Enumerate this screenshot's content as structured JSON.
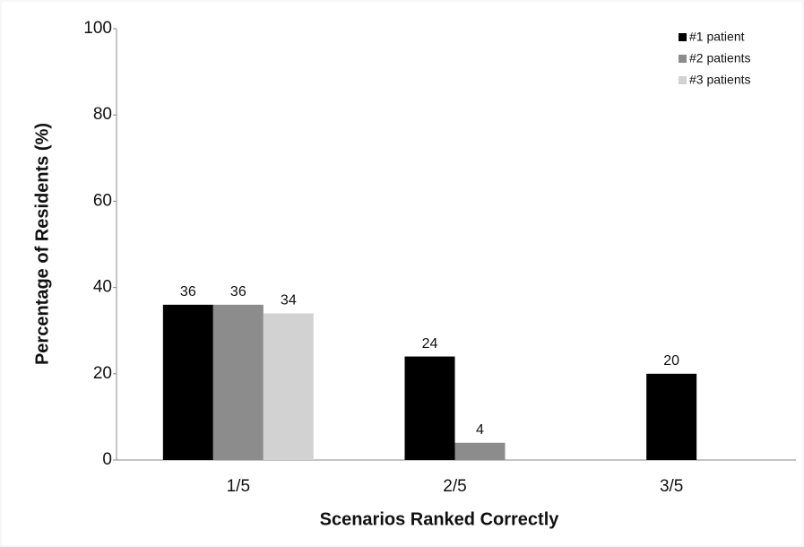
{
  "chart_data": {
    "type": "bar",
    "x_label": "Scenarios Ranked Correctly",
    "y_label": "Percentage of Residents (%)",
    "categories": [
      "1/5",
      "2/5",
      "3/5"
    ],
    "series": [
      {
        "name": "#1 patient",
        "color": "#000000",
        "values": [
          36,
          24,
          20
        ]
      },
      {
        "name": "#2 patients",
        "color": "#8c8c8c",
        "values": [
          36,
          4,
          null
        ]
      },
      {
        "name": "#3 patients",
        "color": "#d2d2d2",
        "values": [
          34,
          null,
          null
        ]
      }
    ],
    "ylim": [
      0,
      100
    ],
    "yticks": [
      0,
      20,
      40,
      60,
      80,
      100
    ],
    "grid": false,
    "legend": "top-right"
  }
}
